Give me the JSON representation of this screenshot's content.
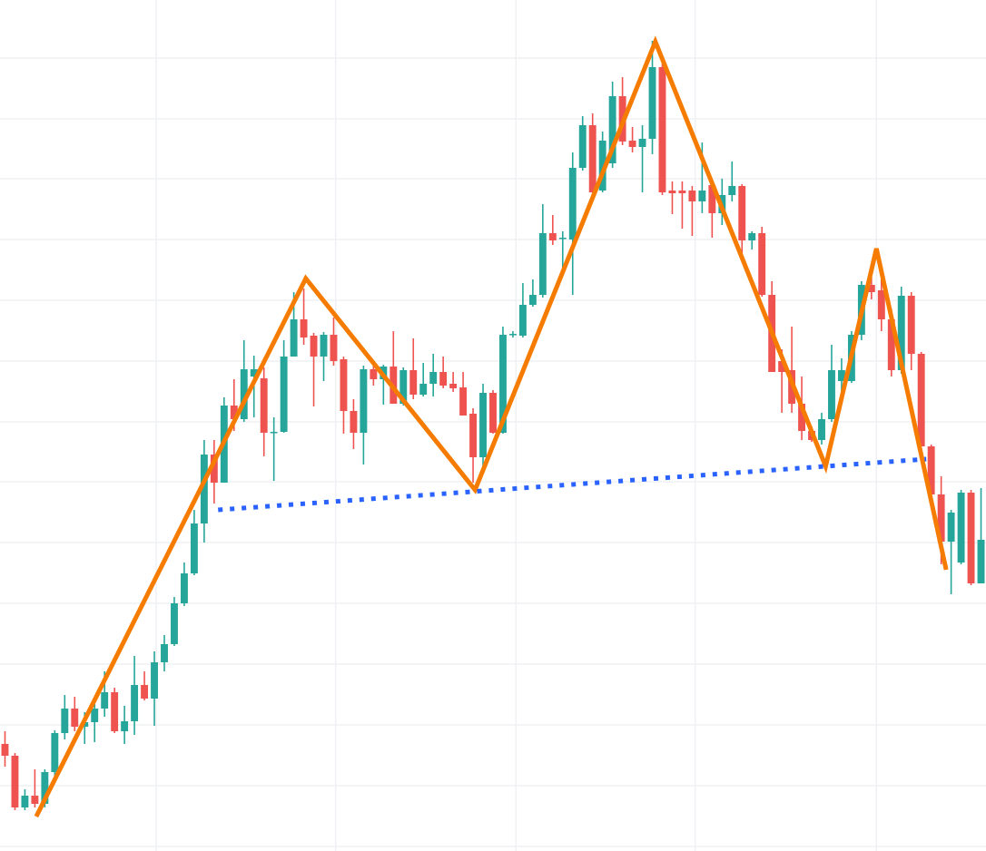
{
  "chart_data": {
    "type": "candlestick",
    "up_color": "#26a69a",
    "down_color": "#ef5350",
    "grid": true,
    "xlim": [
      -0.5,
      98.5
    ],
    "xticks": [
      15.18,
      33.2,
      51.3,
      69.3,
      87.5
    ],
    "ylim": [
      0,
      933
    ],
    "yticks": [
      0,
      67,
      134,
      201,
      268,
      335,
      402,
      468,
      535,
      602,
      669,
      736,
      802,
      869
    ],
    "x": [
      0,
      1,
      2,
      3,
      4,
      5,
      6,
      7,
      8,
      9,
      10,
      11,
      12,
      13,
      14,
      15,
      16,
      17,
      18,
      19,
      20,
      21,
      22,
      23,
      24,
      25,
      26,
      27,
      28,
      29,
      30,
      31,
      32,
      33,
      34,
      35,
      36,
      37,
      38,
      39,
      40,
      41,
      42,
      43,
      44,
      45,
      46,
      47,
      48,
      49,
      50,
      51,
      52,
      53,
      54,
      55,
      56,
      57,
      58,
      59,
      60,
      61,
      62,
      63,
      64,
      65,
      66,
      67,
      68,
      69,
      70,
      71,
      72,
      73,
      74,
      75,
      76,
      77,
      78,
      79,
      80,
      81,
      82,
      83,
      84,
      85,
      86,
      87,
      88,
      89,
      90,
      91,
      92,
      93,
      94,
      95,
      96,
      97,
      98
    ],
    "open": [
      113,
      100,
      43,
      56,
      47,
      82,
      125,
      152,
      132,
      137,
      152,
      170,
      127,
      138,
      178,
      163,
      203,
      223,
      268,
      301,
      356,
      432,
      401,
      486,
      471,
      518,
      516,
      456,
      457,
      540,
      581,
      563,
      540,
      564,
      537,
      480,
      456,
      526,
      515,
      529,
      488,
      525,
      498,
      510,
      523,
      510,
      506,
      477,
      429,
      500,
      456,
      564,
      563,
      597,
      608,
      676,
      670,
      669,
      748,
      795,
      723,
      753,
      827,
      778,
      771,
      780,
      859,
      723,
      723,
      723,
      711,
      729,
      698,
      718,
      728,
      668,
      676,
      608,
      535,
      525,
      488,
      458,
      448,
      471,
      513,
      513,
      564,
      619,
      613,
      581,
      525,
      607,
      543,
      441,
      388,
      336,
      313,
      390,
      290
    ],
    "high": [
      127,
      103,
      63,
      85,
      85,
      128,
      167,
      165,
      148,
      161,
      193,
      175,
      155,
      210,
      193,
      215,
      233,
      275,
      313,
      371,
      448,
      448,
      495,
      515,
      558,
      541,
      528,
      473,
      558,
      611,
      615,
      566,
      567,
      583,
      540,
      493,
      530,
      533,
      531,
      568,
      528,
      560,
      533,
      543,
      540,
      523,
      523,
      483,
      510,
      503,
      573,
      568,
      621,
      625,
      708,
      696,
      678,
      765,
      805,
      808,
      788,
      843,
      848,
      793,
      795,
      888,
      863,
      733,
      733,
      728,
      776,
      736,
      736,
      755,
      730,
      678,
      683,
      623,
      548,
      573,
      518,
      463,
      478,
      553,
      538,
      568,
      623,
      628,
      628,
      593,
      617,
      611,
      545,
      443,
      408,
      371,
      393,
      393,
      395
    ],
    "low": [
      88,
      40,
      40,
      43,
      43,
      78,
      118,
      127,
      113,
      115,
      143,
      125,
      113,
      123,
      161,
      133,
      193,
      221,
      265,
      299,
      335,
      378,
      401,
      458,
      468,
      473,
      430,
      403,
      456,
      540,
      553,
      485,
      513,
      530,
      455,
      438,
      421,
      508,
      487,
      488,
      486,
      493,
      496,
      496,
      505,
      501,
      475,
      401,
      411,
      455,
      455,
      561,
      561,
      595,
      605,
      663,
      631,
      608,
      745,
      718,
      721,
      748,
      773,
      765,
      721,
      763,
      718,
      697,
      681,
      673,
      698,
      671,
      685,
      711,
      651,
      658,
      606,
      523,
      478,
      478,
      448,
      446,
      443,
      468,
      498,
      511,
      558,
      603,
      568,
      518,
      521,
      525,
      441,
      385,
      311,
      278,
      311,
      288,
      290
    ],
    "close": [
      100,
      43,
      56,
      47,
      82,
      125,
      152,
      132,
      137,
      152,
      170,
      127,
      138,
      178,
      163,
      203,
      223,
      268,
      301,
      356,
      432,
      401,
      486,
      471,
      526,
      526,
      456,
      457,
      540,
      581,
      561,
      540,
      564,
      535,
      480,
      456,
      526,
      515,
      529,
      488,
      525,
      498,
      510,
      523,
      508,
      505,
      475,
      429,
      500,
      456,
      564,
      565,
      597,
      608,
      676,
      668,
      671,
      748,
      795,
      721,
      778,
      827,
      777,
      771,
      780,
      859,
      721,
      720,
      720,
      711,
      723,
      698,
      718,
      728,
      668,
      676,
      608,
      523,
      523,
      488,
      458,
      448,
      471,
      525,
      525,
      564,
      619,
      611,
      581,
      525,
      607,
      543,
      441,
      388,
      336,
      368,
      390,
      290,
      338
    ],
    "lines": [
      {
        "color": "#f57c00",
        "style": "solid",
        "x": [
          3.14,
          30.2,
          47.2,
          65.3,
          82.4,
          87.5,
          94.5
        ],
        "y": [
          33,
          626,
          393,
          887,
          419,
          659,
          305
        ]
      },
      {
        "color": "#2962ff",
        "style": "dotted",
        "x": [
          21.4,
          92.5
        ],
        "y": [
          371,
          427
        ]
      }
    ]
  }
}
